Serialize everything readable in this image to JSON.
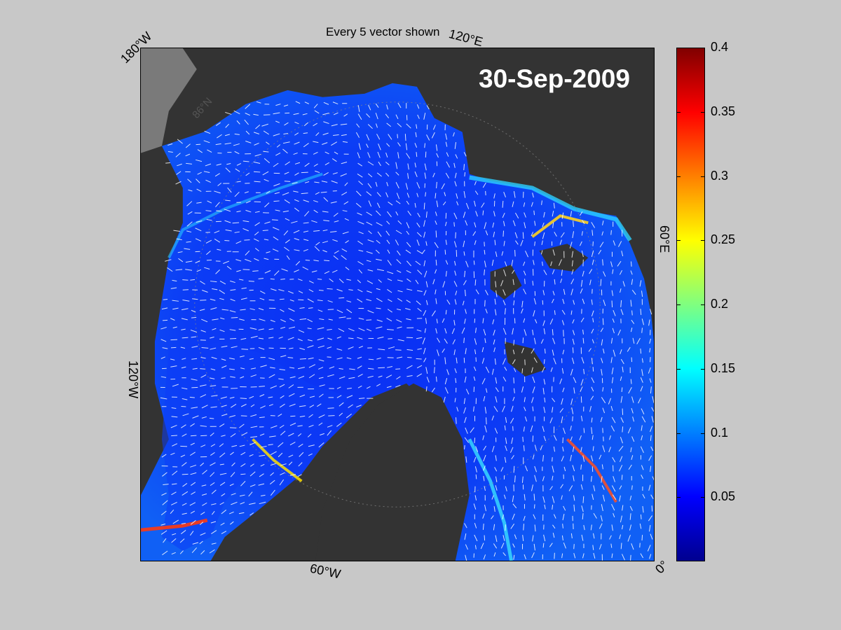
{
  "figure": {
    "title": "Every 5 vector shown",
    "date": "30-Sep-2009"
  },
  "map": {
    "region": "Arctic Ocean polar stereographic",
    "variable": "sea ice drift speed",
    "land_color": "#333333",
    "ocean_low_color": "#0a2cf0",
    "vector_color": "#ffffff",
    "lon_labels": [
      "180°W",
      "120°E",
      "60°E",
      "120°W",
      "60°W",
      "0°"
    ],
    "lat_label": "86°N"
  },
  "colorbar": {
    "colormap": "jet",
    "min": 0,
    "max": 0.4,
    "ticks": [
      "0.05",
      "0.1",
      "0.15",
      "0.2",
      "0.25",
      "0.3",
      "0.35",
      "0.4"
    ],
    "tick_values": [
      0.05,
      0.1,
      0.15,
      0.2,
      0.25,
      0.3,
      0.35,
      0.4
    ]
  }
}
